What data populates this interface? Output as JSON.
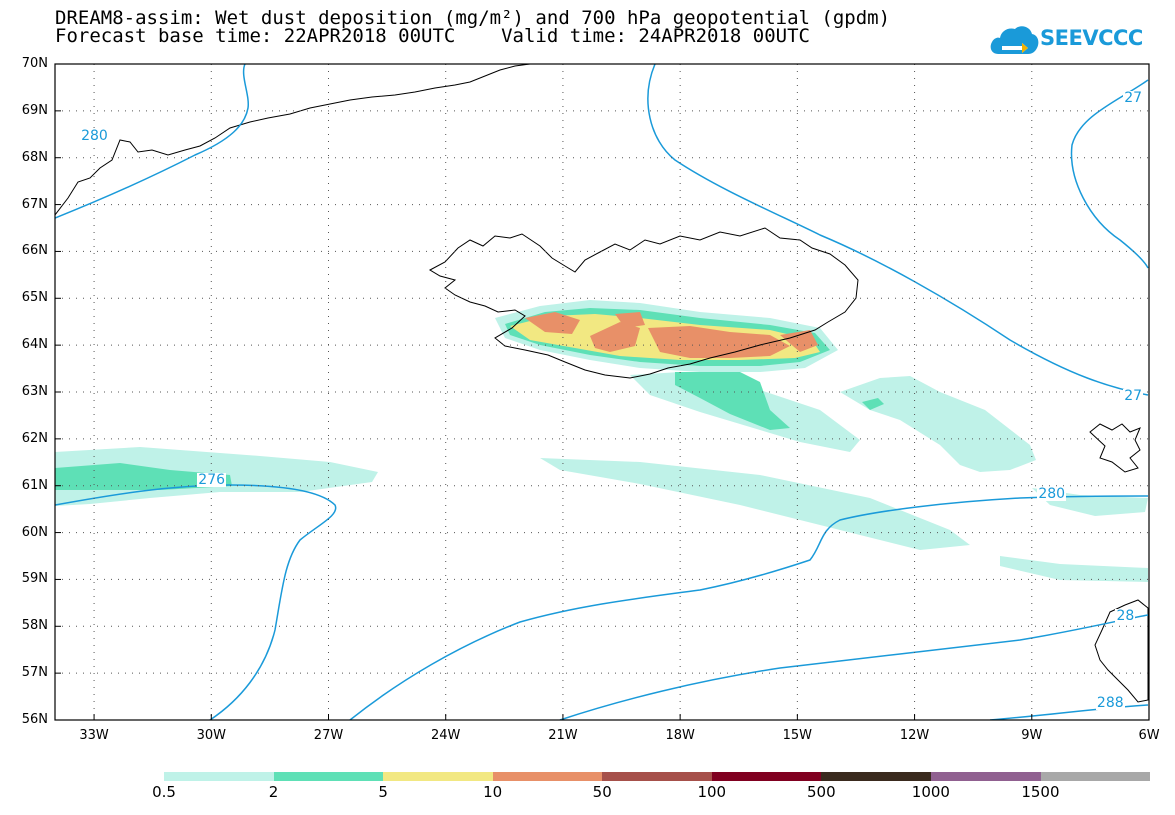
{
  "title": {
    "line1": "DREAM8-assim: Wet dust deposition (mg/m²) and 700 hPa geopotential (gpdm)",
    "line2": "Forecast base time: 22APR2018 00UTC    Valid time: 24APR2018 00UTC"
  },
  "logo": {
    "text": "SEEVCCC",
    "icon": "cloud-icon",
    "color": "#1a9ad9"
  },
  "map": {
    "projection": "lat-lon",
    "lon_range": [
      -34,
      -6
    ],
    "lat_range": [
      56,
      70
    ],
    "grid": "dotted",
    "lat_labels": [
      "70N",
      "69N",
      "68N",
      "67N",
      "66N",
      "65N",
      "64N",
      "63N",
      "62N",
      "61N",
      "60N",
      "59N",
      "58N",
      "57N",
      "56N"
    ],
    "lon_labels": [
      "33W",
      "30W",
      "27W",
      "24W",
      "21W",
      "18W",
      "15W",
      "12W",
      "9W",
      "6W"
    ],
    "contour_color": "#1a9ad9",
    "contour_labels": [
      {
        "text": "280",
        "lon": -33.0,
        "lat": 68.45
      },
      {
        "text": "276",
        "lon": -30.0,
        "lat": 61.1
      },
      {
        "text": "280",
        "lon": -8.5,
        "lat": 60.8
      },
      {
        "text": "27",
        "lon": -6.3,
        "lat": 69.25
      },
      {
        "text": "27",
        "lon": -6.3,
        "lat": 62.9
      },
      {
        "text": "28",
        "lon": -6.5,
        "lat": 58.2
      },
      {
        "text": "288",
        "lon": -7.0,
        "lat": 56.35
      }
    ]
  },
  "colorbar": {
    "colors": [
      "#bff2e8",
      "#5ee0b6",
      "#f2e882",
      "#e89068",
      "#a6504a",
      "#800020",
      "#3a2a1e",
      "#906090",
      "#a8a8a8"
    ],
    "labels": [
      "0.5",
      "2",
      "5",
      "10",
      "50",
      "100",
      "500",
      "1000",
      "1500"
    ]
  }
}
